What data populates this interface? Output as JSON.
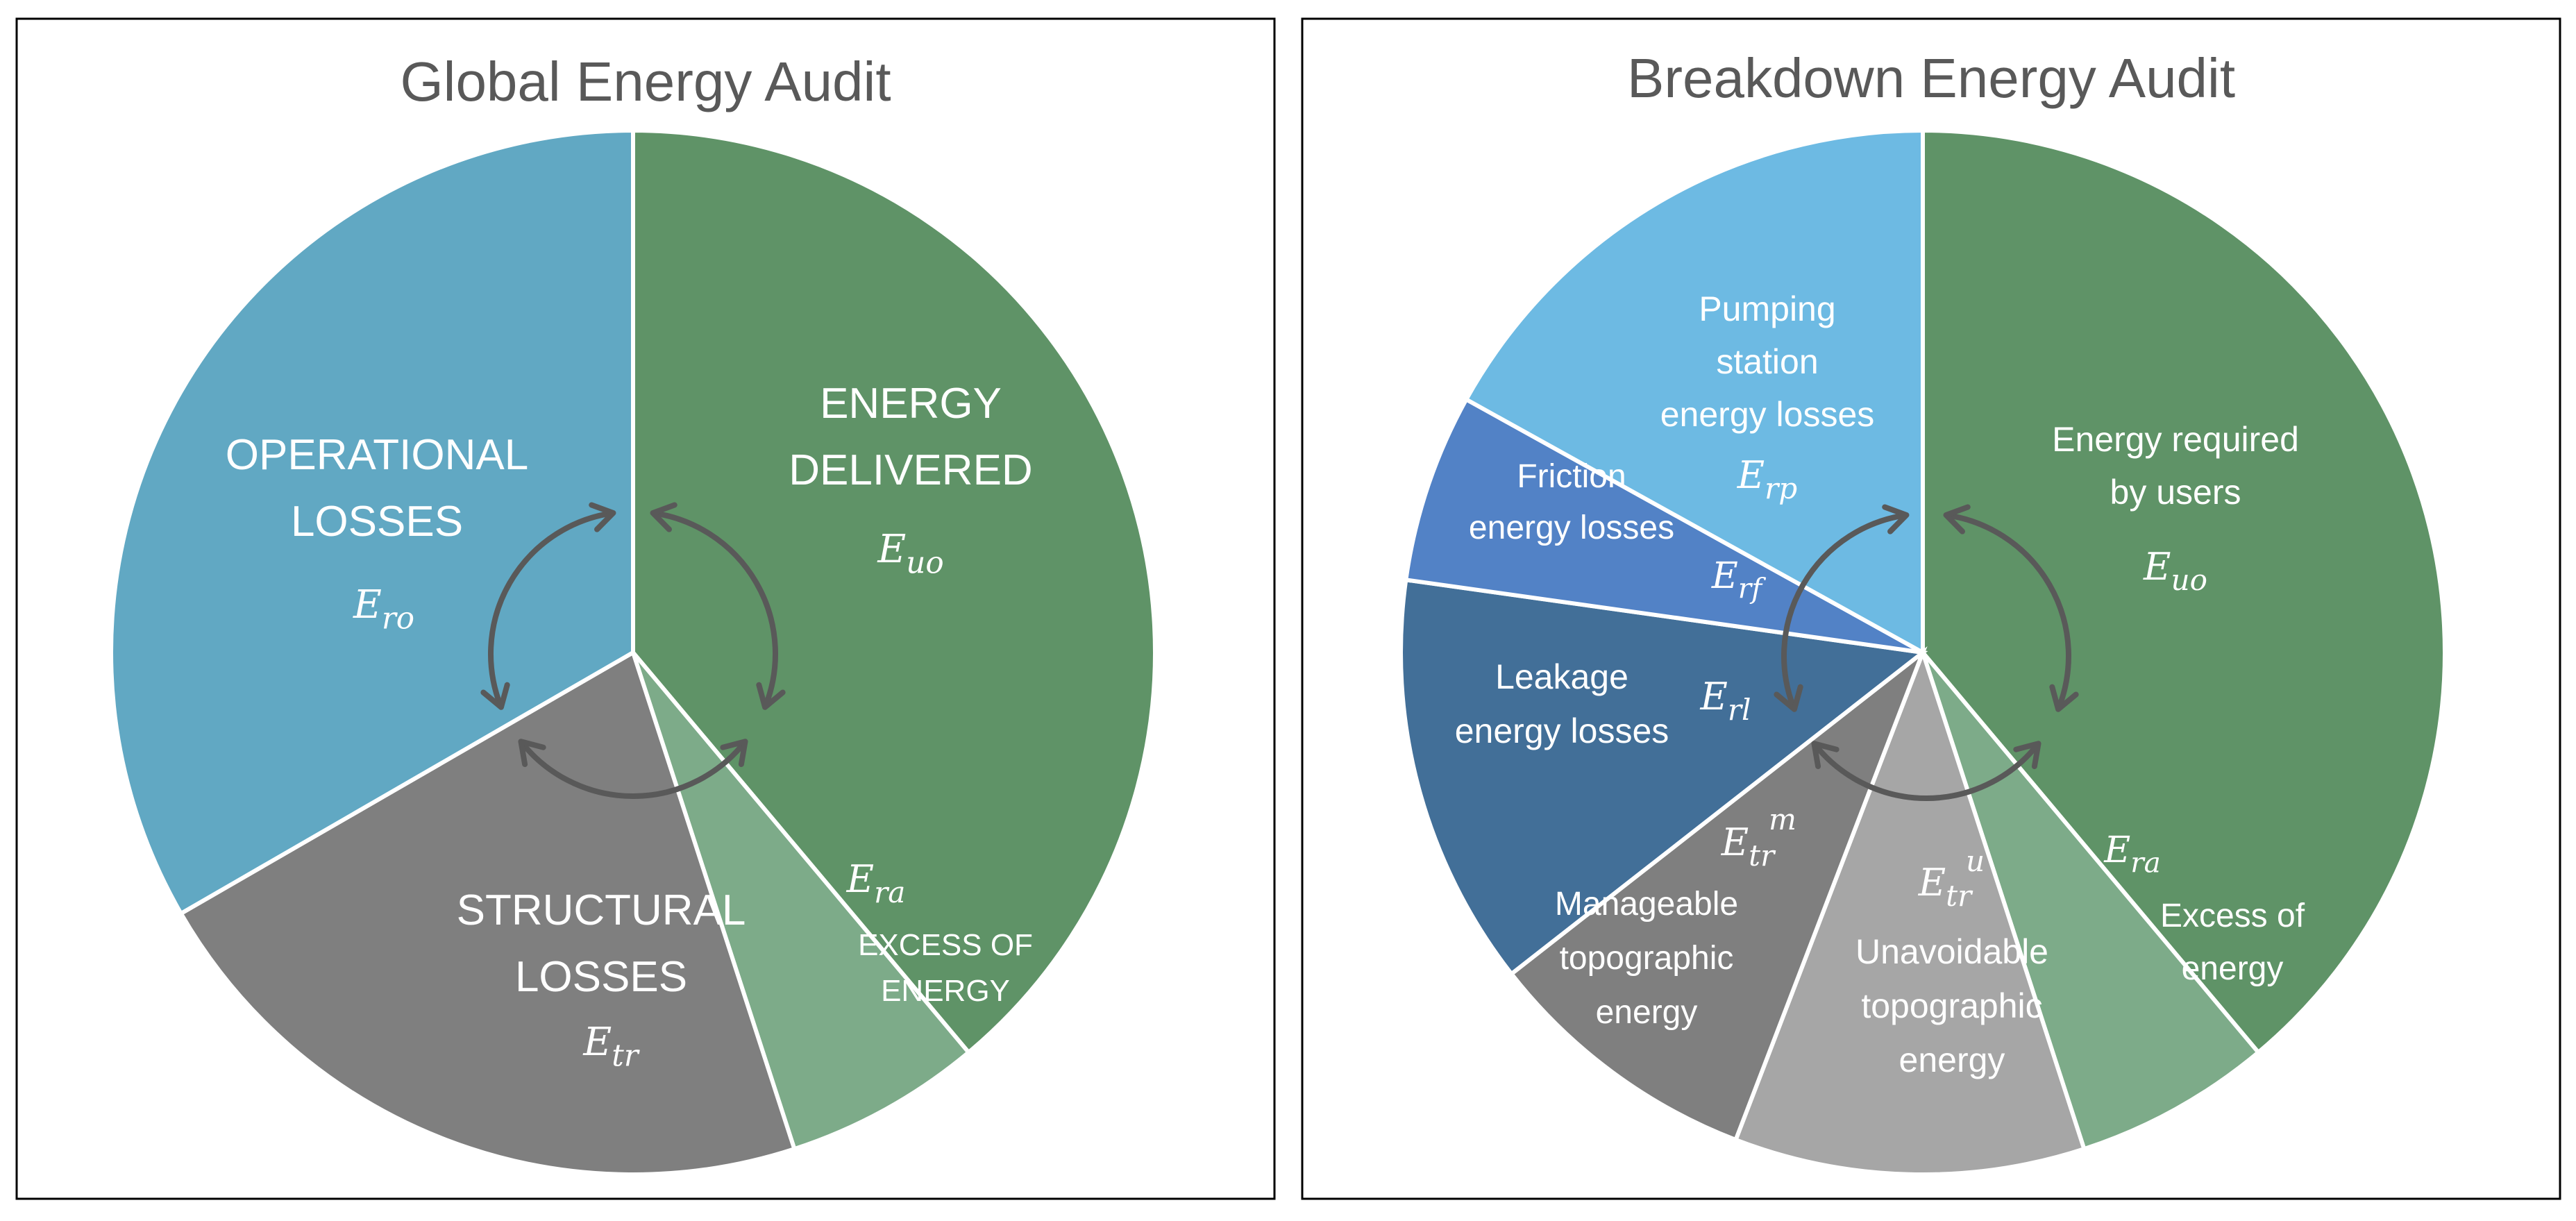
{
  "global": {
    "title": "Global Energy Audit",
    "segments": [
      {
        "id": "energy-delivered",
        "label": [
          "ENERGY",
          "DELIVERED"
        ],
        "symbol": "E",
        "sub": "uo",
        "sup": "",
        "color": "#5f9367"
      },
      {
        "id": "excess-of-energy",
        "label": [
          "EXCESS OF",
          "ENERGY"
        ],
        "symbol": "E",
        "sub": "ra",
        "sup": "",
        "color": "#7dab89"
      },
      {
        "id": "structural-losses",
        "label": [
          "STRUCTURAL",
          "LOSSES"
        ],
        "symbol": "E",
        "sub": "tr",
        "sup": "",
        "color": "#7f7f7f"
      },
      {
        "id": "operational-losses",
        "label": [
          "OPERATIONAL",
          "LOSSES"
        ],
        "symbol": "E",
        "sub": "ro",
        "sup": "",
        "color": "#61a8c3"
      }
    ]
  },
  "breakdown": {
    "title": "Breakdown Energy Audit",
    "segments": [
      {
        "id": "energy-required-by-users",
        "label": [
          "Energy required",
          "by users"
        ],
        "symbol": "E",
        "sub": "uo",
        "sup": "",
        "color": "#5f9367"
      },
      {
        "id": "excess-of-energy",
        "label": [
          "Excess of",
          "energy"
        ],
        "symbol": "E",
        "sub": "ra",
        "sup": "",
        "color": "#7dab89"
      },
      {
        "id": "unavoidable-topographic-energy",
        "label": [
          "Unavoidable",
          "topographic",
          "energy"
        ],
        "symbol": "E",
        "sub": "tr",
        "sup": "u",
        "color": "#a6a6a6"
      },
      {
        "id": "manageable-topographic-energy",
        "label": [
          "Manageable",
          "topographic",
          "energy"
        ],
        "symbol": "E",
        "sub": "tr",
        "sup": "m",
        "color": "#7f7f7f"
      },
      {
        "id": "leakage-energy-losses",
        "label": [
          "Leakage",
          "energy losses"
        ],
        "symbol": "E",
        "sub": "rl",
        "sup": "",
        "color": "#426f98"
      },
      {
        "id": "friction-energy-losses",
        "label": [
          "Friction",
          "energy losses"
        ],
        "symbol": "E",
        "sub": "rf",
        "sup": "",
        "color": "#5282c6"
      },
      {
        "id": "pumping-station-energy-losses",
        "label": [
          "Pumping",
          "station",
          "energy losses"
        ],
        "symbol": "E",
        "sub": "rp",
        "sup": "",
        "color": "#6dbae3"
      }
    ]
  }
}
